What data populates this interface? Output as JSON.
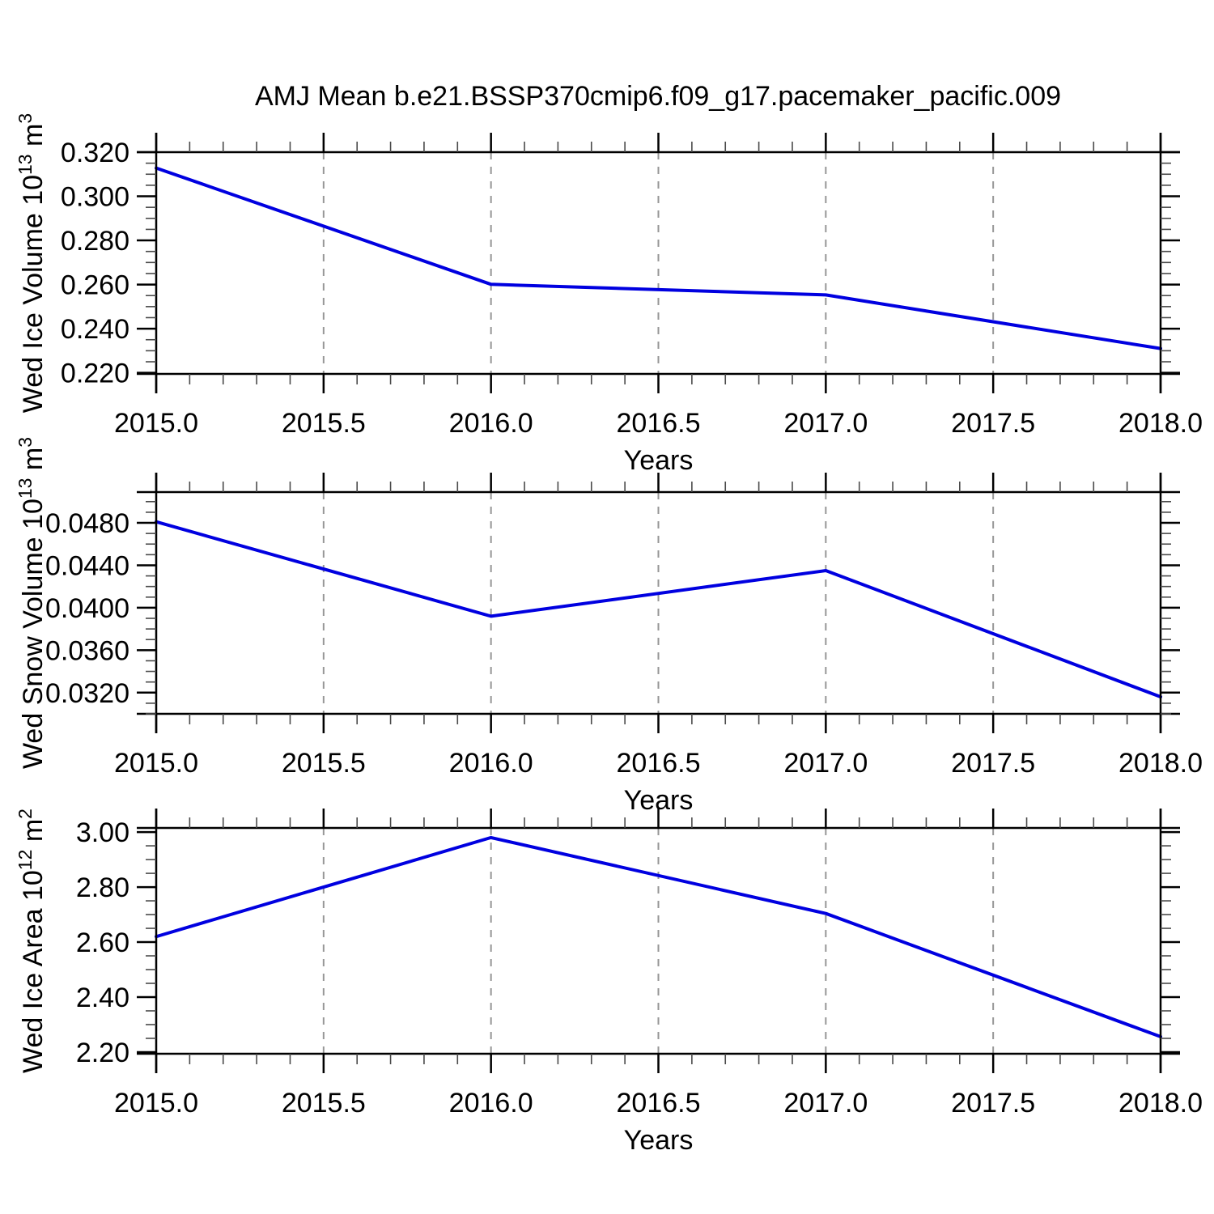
{
  "figure": {
    "title": "AMJ Mean b.e21.BSSP370cmip6.f09_g17.pacemaker_pacific.009",
    "background": "#ffffff"
  },
  "style": {
    "line_color": "#0000e0",
    "frame_color": "#000000",
    "major_tick_color": "#000000",
    "minor_tick_color": "#4a4a4a",
    "grid_color": "#969696",
    "text_color": "#000000"
  },
  "chart_data": [
    {
      "type": "line",
      "name": "ice-volume-panel",
      "ylabel": "Wed Ice Volume 10^13 m^3",
      "ylabel_parts": [
        {
          "text": "Wed Ice Volume 10"
        },
        {
          "text": "13",
          "sup": true
        },
        {
          "text": " m"
        },
        {
          "text": "3",
          "sup": true
        }
      ],
      "xlabel": "Years",
      "x": [
        2015.0,
        2016.0,
        2017.0,
        2018.0
      ],
      "series": [
        {
          "name": "Wed Ice Volume",
          "values": [
            0.3128,
            0.2601,
            0.2553,
            0.231
          ]
        }
      ],
      "xlim": [
        2015.0,
        2018.0
      ],
      "ylim": [
        0.2195,
        0.32
      ],
      "xticks": {
        "values": [
          2015.0,
          2015.5,
          2016.0,
          2016.5,
          2017.0,
          2017.5,
          2018.0
        ],
        "labels": [
          "2015.0",
          "2015.5",
          "2016.0",
          "2016.5",
          "2017.0",
          "2017.5",
          "2018.0"
        ]
      },
      "yticks": {
        "values": [
          0.22,
          0.24,
          0.26,
          0.28,
          0.3,
          0.32
        ],
        "labels": [
          "0.220",
          "0.240",
          "0.260",
          "0.280",
          "0.300",
          "0.320"
        ]
      },
      "minor_x_step": 0.1,
      "minor_y_step": 0.005,
      "gridlines_x": [
        2015.5,
        2016.0,
        2016.5,
        2017.0,
        2017.5
      ],
      "grid": "vertical-dashed",
      "legend": "none"
    },
    {
      "type": "line",
      "name": "snow-volume-panel",
      "ylabel": "Wed Snow Volume 10^13 m^3",
      "ylabel_parts": [
        {
          "text": "Wed Snow Volume 10"
        },
        {
          "text": "13",
          "sup": true
        },
        {
          "text": " m"
        },
        {
          "text": "3",
          "sup": true
        }
      ],
      "xlabel": "Years",
      "x": [
        2015.0,
        2016.0,
        2017.0,
        2018.0
      ],
      "series": [
        {
          "name": "Wed Snow Volume",
          "values": [
            0.0481,
            0.0392,
            0.0435,
            0.0316
          ]
        }
      ],
      "xlim": [
        2015.0,
        2018.0
      ],
      "ylim": [
        0.03,
        0.0509
      ],
      "xticks": {
        "values": [
          2015.0,
          2015.5,
          2016.0,
          2016.5,
          2017.0,
          2017.5,
          2018.0
        ],
        "labels": [
          "2015.0",
          "2015.5",
          "2016.0",
          "2016.5",
          "2017.0",
          "2017.5",
          "2018.0"
        ]
      },
      "yticks": {
        "values": [
          0.032,
          0.036,
          0.04,
          0.044,
          0.048
        ],
        "labels": [
          "0.0320",
          "0.0360",
          "0.0400",
          "0.0440",
          "0.0480"
        ]
      },
      "minor_x_step": 0.1,
      "minor_y_step": 0.001,
      "gridlines_x": [
        2015.5,
        2016.0,
        2016.5,
        2017.0,
        2017.5
      ],
      "grid": "vertical-dashed",
      "legend": "none"
    },
    {
      "type": "line",
      "name": "ice-area-panel",
      "ylabel": "Wed Ice Area 10^12 m^2",
      "ylabel_parts": [
        {
          "text": "Wed Ice Area 10"
        },
        {
          "text": "12",
          "sup": true
        },
        {
          "text": " m"
        },
        {
          "text": "2",
          "sup": true
        }
      ],
      "xlabel": "Years",
      "x": [
        2015.0,
        2016.0,
        2017.0,
        2018.0
      ],
      "series": [
        {
          "name": "Wed Ice Area",
          "values": [
            2.62,
            2.98,
            2.704,
            2.256
          ]
        }
      ],
      "xlim": [
        2015.0,
        2018.0
      ],
      "ylim": [
        2.194,
        3.015
      ],
      "xticks": {
        "values": [
          2015.0,
          2015.5,
          2016.0,
          2016.5,
          2017.0,
          2017.5,
          2018.0
        ],
        "labels": [
          "2015.0",
          "2015.5",
          "2016.0",
          "2016.5",
          "2017.0",
          "2017.5",
          "2018.0"
        ]
      },
      "yticks": {
        "values": [
          2.2,
          2.4,
          2.6,
          2.8,
          3.0
        ],
        "labels": [
          "2.20",
          "2.40",
          "2.60",
          "2.80",
          "3.00"
        ]
      },
      "minor_x_step": 0.1,
      "minor_y_step": 0.05,
      "gridlines_x": [
        2015.5,
        2016.0,
        2016.5,
        2017.0,
        2017.5
      ],
      "grid": "vertical-dashed",
      "legend": "none"
    }
  ]
}
